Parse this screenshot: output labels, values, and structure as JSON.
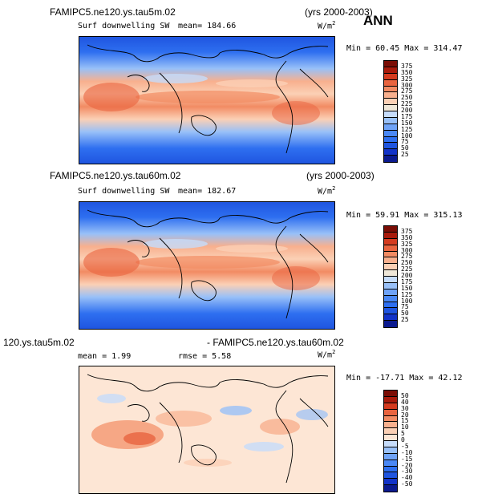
{
  "ann_label": "ANN",
  "panels": [
    {
      "case": "FAMIPC5.ne120.ys.tau5m.02",
      "years": "(yrs 2000-2003)",
      "variable": "Surf downwelling SW",
      "mean_text": "mean= 184.66",
      "units": "W/m",
      "units_sup": "2",
      "minmax": "Min =  60.45 Max = 314.47"
    },
    {
      "case": "FAMIPC5.ne120.ys.tau60m.02",
      "years": "(yrs 2000-2003)",
      "variable": "Surf downwelling SW",
      "mean_text": "mean= 182.67",
      "units": "W/m",
      "units_sup": "2",
      "minmax": "Min =  59.91 Max = 315.13"
    },
    {
      "case_left": "120.ys.tau5m.02",
      "case_right": "- FAMIPC5.ne120.ys.tau60m.02",
      "mean_text": "mean =   1.99",
      "rmse_text": "rmse =   5.58",
      "units": "W/m",
      "units_sup": "2",
      "minmax": "Min = -17.71 Max =  42.12"
    }
  ],
  "chart_data": [
    {
      "type": "heatmap",
      "title": "FAMIPC5.ne120.ys.tau5m.02",
      "subtitle": "Surf downwelling SW",
      "mean": 184.66,
      "min": 60.45,
      "max": 314.47,
      "units": "W/m2",
      "colorbar_levels": [
        25,
        50,
        75,
        100,
        125,
        150,
        175,
        200,
        225,
        250,
        275,
        300,
        325,
        350,
        375
      ]
    },
    {
      "type": "heatmap",
      "title": "FAMIPC5.ne120.ys.tau60m.02",
      "subtitle": "Surf downwelling SW",
      "mean": 182.67,
      "min": 59.91,
      "max": 315.13,
      "units": "W/m2",
      "colorbar_levels": [
        25,
        50,
        75,
        100,
        125,
        150,
        175,
        200,
        225,
        250,
        275,
        300,
        325,
        350,
        375
      ]
    },
    {
      "type": "heatmap",
      "title": "120.ys.tau5m.02 - FAMIPC5.ne120.ys.tau60m.02",
      "mean": 1.99,
      "rmse": 5.58,
      "min": -17.71,
      "max": 42.12,
      "units": "W/m2",
      "colorbar_levels": [
        -50,
        -40,
        -30,
        -20,
        -15,
        -10,
        -5,
        0,
        5,
        10,
        15,
        20,
        30,
        40,
        50
      ]
    }
  ],
  "colors": {
    "abs": [
      "#0b1a8f",
      "#1233c8",
      "#1f55e0",
      "#2e6ff0",
      "#4a88f5",
      "#6fa3f7",
      "#98c0f8",
      "#c6dcfa",
      "#efe7d8",
      "#fbd0b5",
      "#f8b08e",
      "#f28b63",
      "#e9643f",
      "#d43b1f",
      "#a81a0b",
      "#7a0d05"
    ],
    "diff": [
      "#0b1a8f",
      "#1233c8",
      "#1f55e0",
      "#2e6ff0",
      "#4a88f5",
      "#6fa3f7",
      "#98c0f8",
      "#c6dcfa",
      "#fde6d5",
      "#fbd0b5",
      "#f8b08e",
      "#f28b63",
      "#e9643f",
      "#d43b1f",
      "#a81a0b",
      "#7a0d05"
    ]
  }
}
